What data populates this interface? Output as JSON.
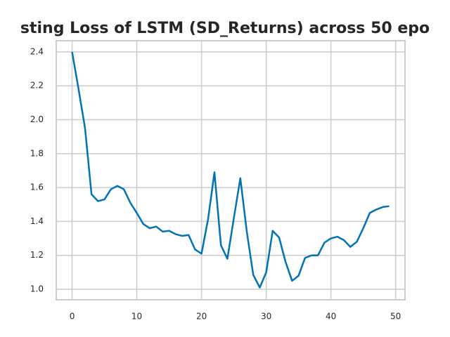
{
  "chart_data": {
    "type": "line",
    "title": "sting Loss of LSTM (SD_Returns) across 50 epo",
    "x": [
      0,
      1,
      2,
      3,
      4,
      5,
      6,
      7,
      8,
      9,
      10,
      11,
      12,
      13,
      14,
      15,
      16,
      17,
      18,
      19,
      20,
      21,
      22,
      23,
      24,
      25,
      26,
      27,
      28,
      29,
      30,
      31,
      32,
      33,
      34,
      35,
      36,
      37,
      38,
      39,
      40,
      41,
      42,
      43,
      44,
      45,
      46,
      47,
      48,
      49
    ],
    "series": [
      {
        "color": "#0173b2",
        "values": [
          2.4,
          2.18,
          1.95,
          1.56,
          1.52,
          1.53,
          1.59,
          1.61,
          1.59,
          1.51,
          1.45,
          1.385,
          1.36,
          1.37,
          1.34,
          1.345,
          1.325,
          1.315,
          1.32,
          1.235,
          1.21,
          1.41,
          1.69,
          1.26,
          1.18,
          1.42,
          1.655,
          1.34,
          1.085,
          1.01,
          1.1,
          1.345,
          1.305,
          1.16,
          1.05,
          1.08,
          1.185,
          1.2,
          1.2,
          1.275,
          1.3,
          1.31,
          1.29,
          1.25,
          1.28,
          1.36,
          1.45,
          1.47,
          1.485,
          1.49
        ]
      }
    ],
    "xlim": [
      -2.45,
      51.45
    ],
    "xticks": [
      0,
      10,
      20,
      30,
      40,
      50
    ],
    "ylim": [
      0.938,
      2.466
    ],
    "yticks": [
      {
        "value": 1.0,
        "label": "1.0"
      },
      1.2,
      1.4,
      1.6,
      1.8,
      {
        "value": 2.0,
        "label": "2.0"
      },
      2.2,
      2.4
    ],
    "grid": true
  }
}
